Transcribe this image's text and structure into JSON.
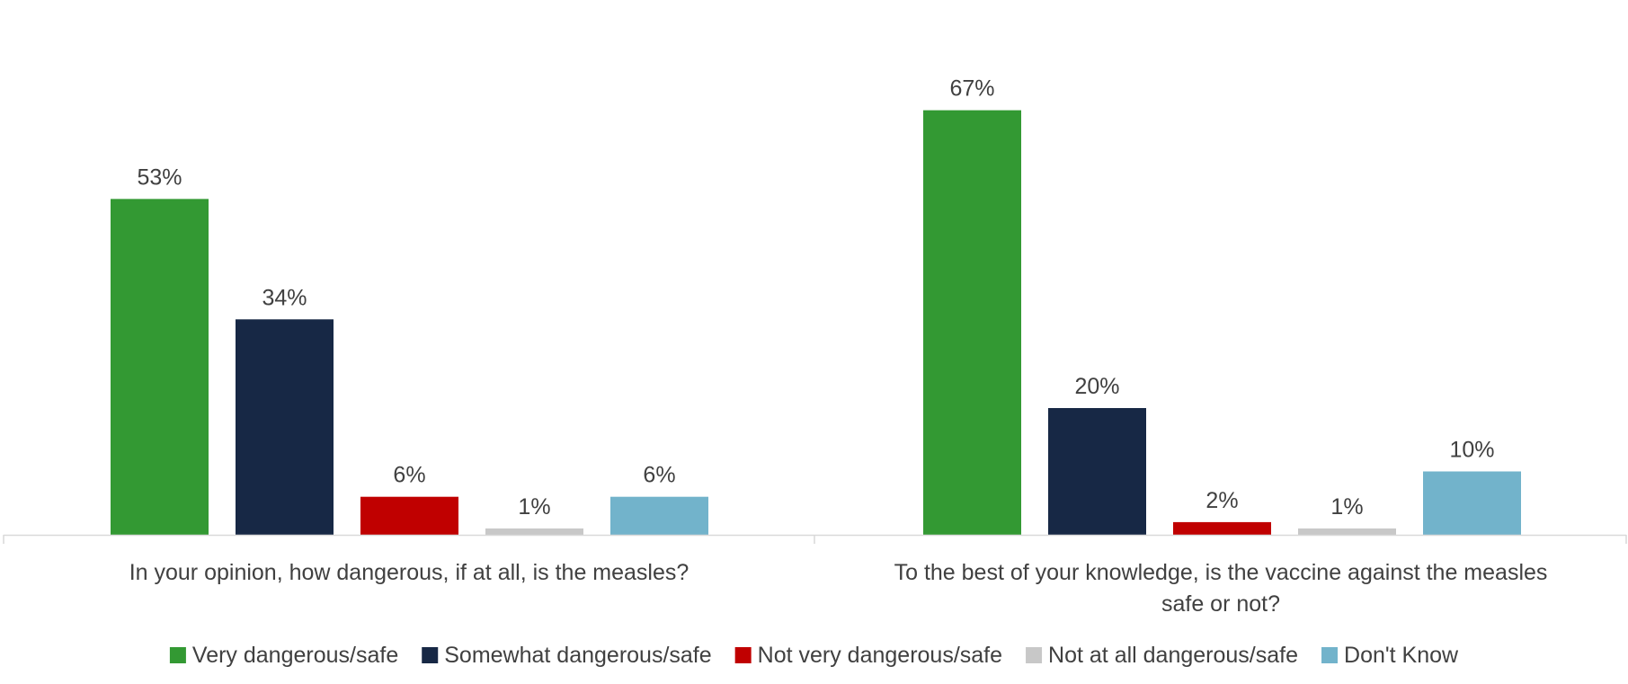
{
  "chart_data": {
    "type": "bar",
    "categories": [
      "In your opinion, how dangerous, if at all, is the measles?",
      "To the best of your knowledge, is the vaccine against the measles safe or not?"
    ],
    "series": [
      {
        "name": "Very dangerous/safe",
        "values": [
          53,
          67
        ],
        "labels": [
          "53%",
          "67%"
        ],
        "color": "#339933"
      },
      {
        "name": "Somewhat dangerous/safe",
        "values": [
          34,
          20
        ],
        "labels": [
          "34%",
          "20%"
        ],
        "color": "#172845"
      },
      {
        "name": "Not very dangerous/safe",
        "values": [
          6,
          2
        ],
        "labels": [
          "6%",
          "2%"
        ],
        "color": "#C00000"
      },
      {
        "name": "Not at all dangerous/safe",
        "values": [
          1,
          1
        ],
        "labels": [
          "1%",
          "1%"
        ],
        "color": "#C8C8C8"
      },
      {
        "name": "Don't Know",
        "values": [
          6,
          10
        ],
        "labels": [
          "6%",
          "10%"
        ],
        "color": "#72B3CB"
      }
    ],
    "ylim": [
      0,
      70
    ],
    "grid": false,
    "legend": "bottom",
    "axis_color": "#D9D9D9"
  }
}
